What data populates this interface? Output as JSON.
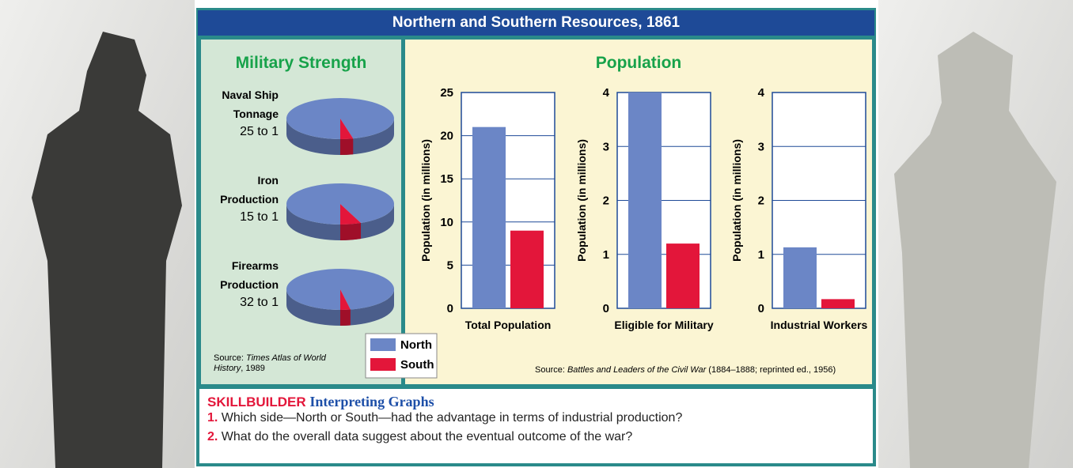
{
  "header": {
    "title": "Northern and Southern Resources, 1861"
  },
  "military": {
    "title": "Military Strength",
    "source": {
      "prefix": "Source: ",
      "work": "Times Atlas of World History",
      "suffix": ", 1989"
    }
  },
  "population": {
    "title": "Population",
    "source": {
      "prefix": "Source: ",
      "work": "Battles and Leaders of the Civil War",
      "suffix": " (1884–1888; reprinted ed., 1956)"
    }
  },
  "chart_data": [
    {
      "type": "pie",
      "label": "Naval Ship Tonnage",
      "ratio_label": "25 to 1",
      "values": [
        25,
        1
      ],
      "colors": [
        "#6b86c6",
        "#e3163a"
      ]
    },
    {
      "type": "pie",
      "label": "Iron Production",
      "ratio_label": "15 to 1",
      "values": [
        15,
        1
      ],
      "colors": [
        "#6b86c6",
        "#e3163a"
      ]
    },
    {
      "type": "pie",
      "label": "Firearms Production",
      "ratio_label": "32 to 1",
      "values": [
        32,
        1
      ],
      "colors": [
        "#6b86c6",
        "#e3163a"
      ]
    },
    {
      "type": "bar",
      "ylabel": "Population (in millions)",
      "categories": [
        "Total Population"
      ],
      "series": [
        {
          "name": "North",
          "color": "#6b86c6",
          "values": [
            21
          ]
        },
        {
          "name": "South",
          "color": "#e3163a",
          "values": [
            9
          ]
        }
      ],
      "ylim": [
        0,
        25
      ],
      "yticks": [
        0,
        5,
        10,
        15,
        20,
        25
      ],
      "grid": true
    },
    {
      "type": "bar",
      "ylabel": "Population (in millions)",
      "categories": [
        "Eligible for Military"
      ],
      "series": [
        {
          "name": "North",
          "color": "#6b86c6",
          "values": [
            4
          ]
        },
        {
          "name": "South",
          "color": "#e3163a",
          "values": [
            1.2
          ]
        }
      ],
      "ylim": [
        0,
        4
      ],
      "yticks": [
        0,
        1,
        2,
        3,
        4
      ],
      "grid": true
    },
    {
      "type": "bar",
      "ylabel": "Population (in millions)",
      "categories": [
        "Industrial Workers"
      ],
      "series": [
        {
          "name": "North",
          "color": "#6b86c6",
          "values": [
            1.13
          ]
        },
        {
          "name": "South",
          "color": "#e3163a",
          "values": [
            0.17
          ]
        }
      ],
      "ylim": [
        0,
        4
      ],
      "yticks": [
        0,
        1,
        2,
        3,
        4
      ],
      "grid": true
    }
  ],
  "skillbuilder": {
    "label": "SKILLBUILDER",
    "title": "Interpreting Graphs",
    "questions": [
      {
        "number": "1.",
        "text": "Which side—North or South—had the advantage in terms of industrial production?"
      },
      {
        "number": "2.",
        "text": "What do the overall data suggest about the eventual outcome of the war?"
      }
    ]
  }
}
